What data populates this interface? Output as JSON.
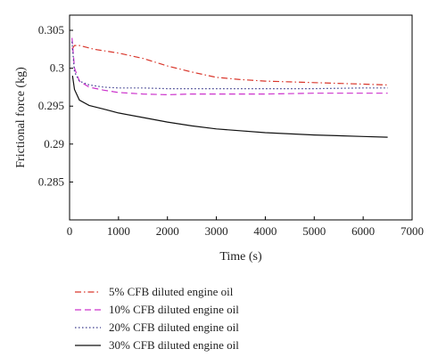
{
  "chart_data": {
    "type": "line",
    "xlabel": "Time (s)",
    "ylabel": "Frictional force (kg)",
    "xlim": [
      0,
      7000
    ],
    "ylim": [
      0.28,
      0.307
    ],
    "x_ticks": [
      0,
      1000,
      2000,
      3000,
      4000,
      5000,
      6000,
      7000
    ],
    "x_tick_labels": [
      "0",
      "1000",
      "2000",
      "3000",
      "4000",
      "5000",
      "6000",
      "7000"
    ],
    "y_ticks": [
      0.285,
      0.29,
      0.295,
      0.3,
      0.305
    ],
    "y_tick_labels": [
      "0.285",
      "0.29",
      "0.295",
      "0.3",
      "0.305"
    ],
    "grid": false,
    "legend_position": "below",
    "series": [
      {
        "name": "5% CFB diluted engine oil",
        "color": "#d9372c",
        "dash": "dash-dot",
        "x": [
          50,
          100,
          200,
          500,
          1000,
          1500,
          2000,
          2500,
          3000,
          3500,
          4000,
          5000,
          6000,
          6500
        ],
        "y": [
          0.3025,
          0.303,
          0.303,
          0.3025,
          0.302,
          0.3013,
          0.3003,
          0.2995,
          0.2988,
          0.2985,
          0.2983,
          0.2981,
          0.2979,
          0.2978
        ]
      },
      {
        "name": "10% CFB diluted engine oil",
        "color": "#cc33cc",
        "dash": "dash",
        "x": [
          50,
          100,
          200,
          400,
          700,
          1000,
          1500,
          2000,
          2500,
          3000,
          4000,
          5000,
          6000,
          6500
        ],
        "y": [
          0.304,
          0.3,
          0.2983,
          0.2975,
          0.2971,
          0.2968,
          0.2966,
          0.2965,
          0.2966,
          0.2966,
          0.2966,
          0.2967,
          0.2967,
          0.2967
        ]
      },
      {
        "name": "20% CFB diluted engine oil",
        "color": "#3a3a8c",
        "dash": "dot",
        "x": [
          50,
          100,
          200,
          400,
          700,
          1000,
          1500,
          2000,
          3000,
          4000,
          5000,
          6000,
          6500
        ],
        "y": [
          0.3035,
          0.2995,
          0.2983,
          0.2978,
          0.2975,
          0.2974,
          0.2974,
          0.2973,
          0.2973,
          0.2973,
          0.2973,
          0.2974,
          0.2974
        ]
      },
      {
        "name": "30% CFB diluted engine oil",
        "color": "#111111",
        "dash": "solid",
        "x": [
          60,
          100,
          200,
          400,
          700,
          1000,
          1500,
          2000,
          2500,
          3000,
          4000,
          5000,
          6000,
          6500
        ],
        "y": [
          0.299,
          0.2972,
          0.2958,
          0.2951,
          0.2946,
          0.2941,
          0.2935,
          0.2929,
          0.2924,
          0.292,
          0.2915,
          0.2912,
          0.291,
          0.2909
        ]
      }
    ]
  }
}
